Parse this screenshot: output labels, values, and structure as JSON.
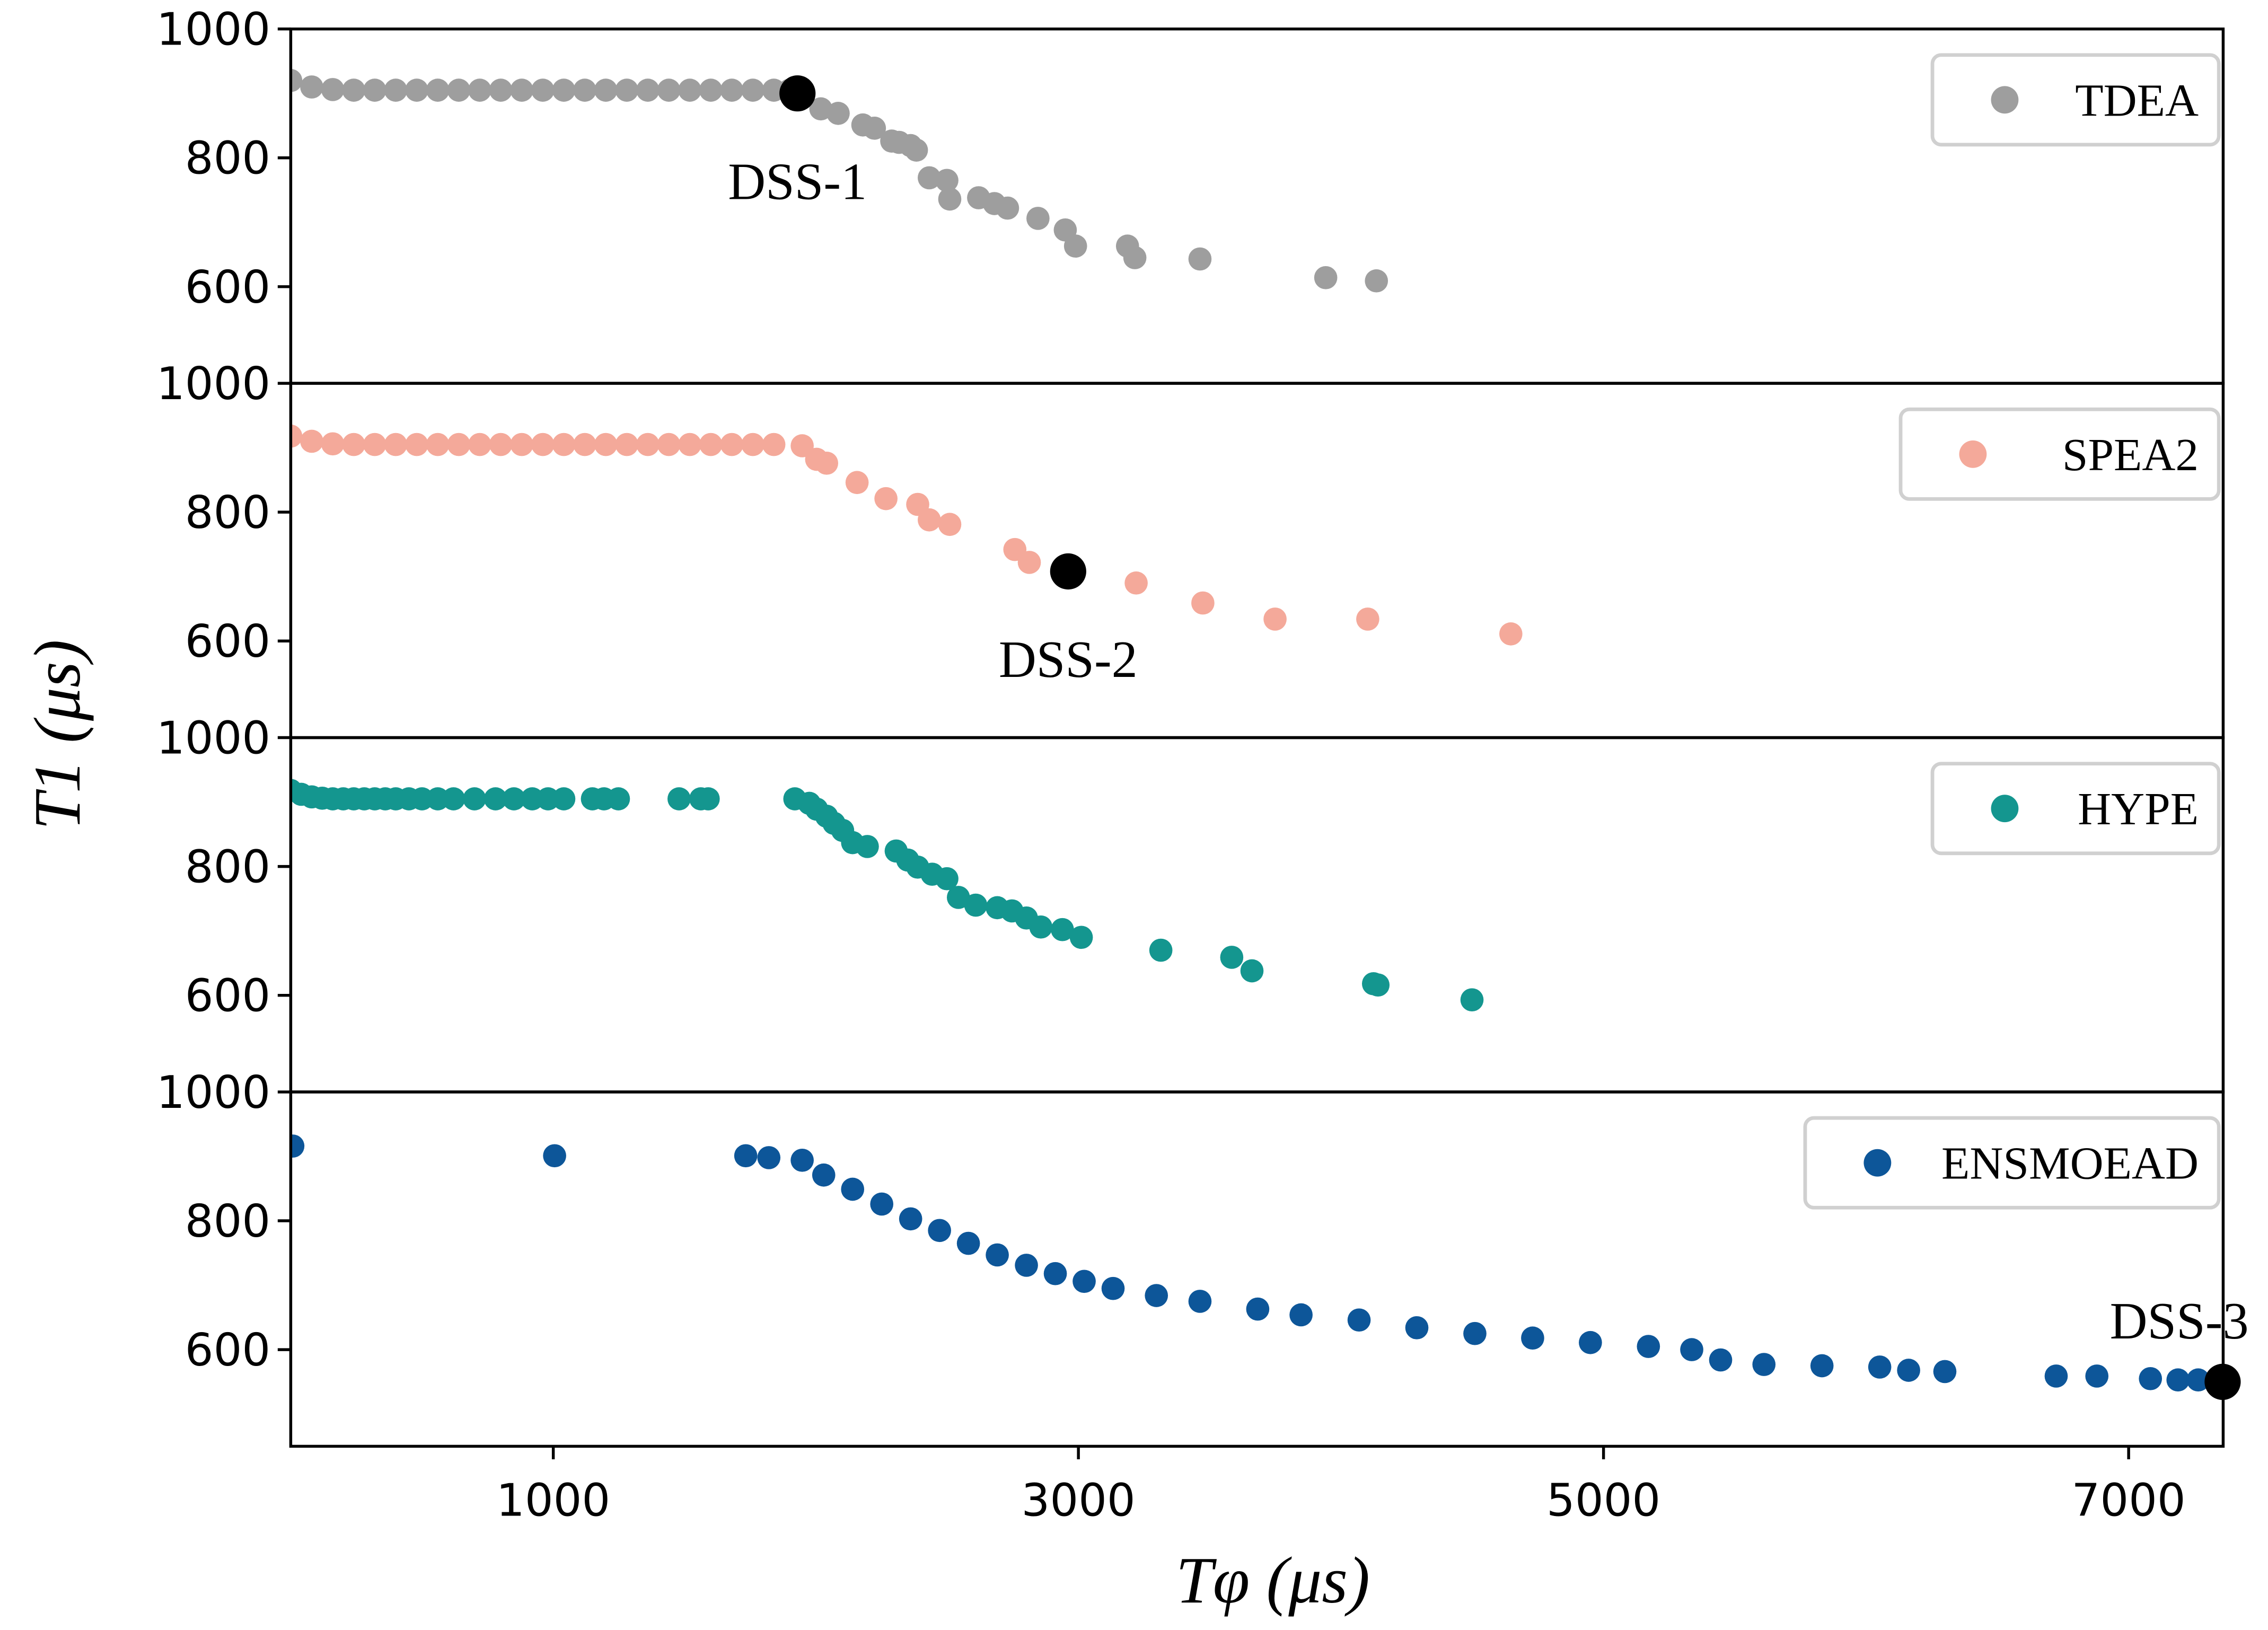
{
  "chart_data": {
    "type": "scatter",
    "xlabel": "Tφ (μs)",
    "ylabel": "T1 (μs)",
    "xlim": [
      0,
      7360
    ],
    "ylim": [
      450,
      1000
    ],
    "xticks": [
      1000,
      3000,
      5000,
      7000
    ],
    "yticks": [
      600,
      800,
      1000
    ],
    "grid": false,
    "legend_placement": "top-right",
    "panels": [
      {
        "name": "TDEA",
        "color": "#9e9e9e",
        "x": [
          0,
          80,
          160,
          240,
          320,
          400,
          480,
          560,
          640,
          720,
          800,
          880,
          960,
          1040,
          1120,
          1200,
          1280,
          1360,
          1440,
          1520,
          1600,
          1680,
          1760,
          1840,
          1900,
          2019,
          2085,
          2179,
          2223,
          2289,
          2317,
          2361,
          2383,
          2432,
          2499,
          2510,
          2620,
          2680,
          2730,
          2846,
          2950,
          2989,
          3187,
          3215,
          3463,
          3942,
          4135
        ],
        "y": [
          920,
          910,
          906,
          905,
          905,
          905,
          905,
          905,
          905,
          905,
          905,
          905,
          905,
          905,
          905,
          905,
          905,
          905,
          905,
          905,
          905,
          905,
          905,
          905,
          905,
          876,
          869,
          851,
          846,
          826,
          824,
          819,
          812,
          769,
          765,
          736,
          738,
          729,
          722,
          706,
          688,
          663,
          663,
          645,
          643,
          614,
          609
        ],
        "highlight": {
          "label": "DSS-1",
          "x": 1930,
          "y": 900
        }
      },
      {
        "name": "SPEA2",
        "color": "#f4a99a",
        "x": [
          0,
          80,
          160,
          240,
          320,
          400,
          480,
          560,
          640,
          720,
          800,
          880,
          960,
          1040,
          1120,
          1200,
          1280,
          1360,
          1440,
          1520,
          1600,
          1680,
          1760,
          1840,
          1948,
          2003,
          2041,
          2157,
          2267,
          2388,
          2432,
          2510,
          2758,
          2813,
          3220,
          3474,
          3749,
          4102,
          4647
        ],
        "y": [
          918,
          910,
          906,
          905,
          905,
          905,
          905,
          905,
          905,
          905,
          905,
          905,
          905,
          905,
          905,
          905,
          905,
          905,
          905,
          905,
          905,
          905,
          905,
          905,
          903,
          882,
          876,
          846,
          821,
          812,
          788,
          781,
          742,
          722,
          690,
          659,
          634,
          634,
          611
        ],
        "highlight": {
          "label": "DSS-2",
          "x": 2961,
          "y": 708
        }
      },
      {
        "name": "HYPE",
        "color": "#14968f",
        "x": [
          0,
          40,
          80,
          120,
          160,
          200,
          240,
          280,
          320,
          360,
          400,
          450,
          500,
          560,
          620,
          700,
          780,
          850,
          920,
          980,
          1040,
          1149,
          1193,
          1248,
          1479,
          1562,
          1590,
          1920,
          1975,
          2003,
          2041,
          2069,
          2102,
          2140,
          2196,
          2306,
          2350,
          2388,
          2443,
          2499,
          2543,
          2609,
          2691,
          2747,
          2802,
          2857,
          2939,
          3011,
          3314,
          3584,
          3661,
          4124,
          4141,
          4499
        ],
        "y": [
          918,
          912,
          908,
          906,
          905,
          905,
          905,
          905,
          905,
          905,
          905,
          905,
          905,
          905,
          905,
          905,
          905,
          905,
          905,
          905,
          905,
          905,
          905,
          905,
          905,
          905,
          905,
          905,
          898,
          889,
          878,
          867,
          856,
          837,
          831,
          824,
          810,
          799,
          788,
          781,
          752,
          740,
          736,
          731,
          720,
          706,
          702,
          690,
          670,
          659,
          638,
          618,
          616,
          593
        ],
        "highlight": null
      },
      {
        "name": "ENSMOEAD",
        "color": "#0d5699",
        "x": [
          8,
          1005,
          1733,
          1821,
          1948,
          2030,
          2140,
          2251,
          2361,
          2471,
          2581,
          2691,
          2802,
          2912,
          3022,
          3132,
          3297,
          3463,
          3683,
          3848,
          4069,
          4289,
          4510,
          4730,
          4950,
          5171,
          5336,
          5446,
          5611,
          5832,
          6052,
          6162,
          6300,
          6724,
          6879,
          7083,
          7188,
          7265
        ],
        "y": [
          916,
          901,
          901,
          898,
          894,
          871,
          849,
          826,
          803,
          785,
          765,
          747,
          731,
          718,
          706,
          695,
          684,
          675,
          663,
          654,
          646,
          634,
          625,
          618,
          611,
          605,
          600,
          584,
          577,
          575,
          573,
          568,
          566,
          559,
          559,
          555,
          553,
          553
        ],
        "highlight": {
          "label": "DSS-3",
          "x": 7358,
          "y": 550
        }
      }
    ]
  }
}
